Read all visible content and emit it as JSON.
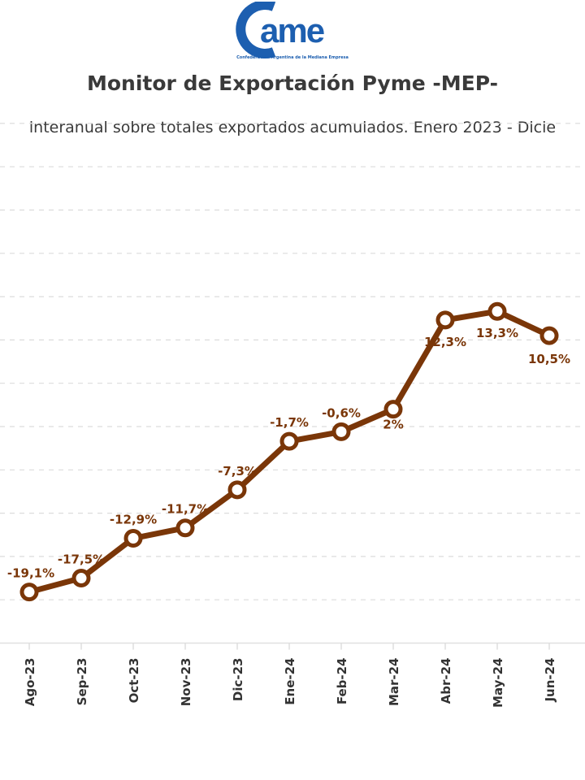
{
  "logo": {
    "text": "cme",
    "tagline": "Confederación Argentina de la Mediana Empresa",
    "color": "#1d5fb0"
  },
  "chart_data": {
    "type": "line",
    "title": "Monitor de Exportación Pyme -MEP-",
    "subtitle": "interanual sobre totales exportados acumulados. Enero 2023 - Dicie",
    "categories": [
      "Ago-23",
      "Sep-23",
      "Oct-23",
      "Nov-23",
      "Dic-23",
      "Ene-24",
      "Feb-24",
      "Mar-24",
      "Abr-24",
      "May-24",
      "Jun-24"
    ],
    "values": [
      -19.1,
      -17.5,
      -12.9,
      -11.7,
      -7.3,
      -1.7,
      -0.6,
      2,
      12.3,
      13.3,
      10.5
    ],
    "labels": [
      "-19,1%",
      "-17,5%",
      "-12,9%",
      "-11,7%",
      "-7,3%",
      "-1,7%",
      "-0,6%",
      "2%",
      "12,3%",
      "13,3%",
      "10,5%"
    ],
    "ylim": [
      -25,
      35
    ],
    "grid": true,
    "line_color": "#7a3608",
    "xlabel": "",
    "ylabel": ""
  }
}
